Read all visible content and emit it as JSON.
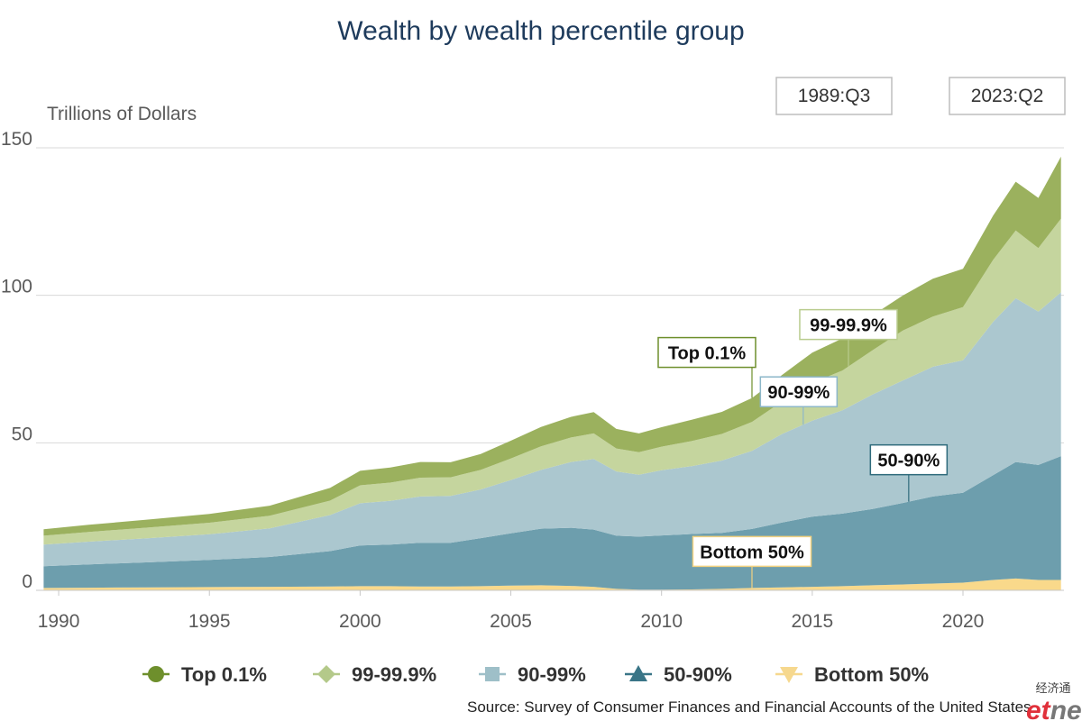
{
  "page": {
    "range_start": "1989:Q3",
    "range_end": "2023:Q2",
    "source": "Source: Survey of Consumer Finances and Financial Accounts of the United States",
    "watermark": {
      "cn": "经济通",
      "logo": "etnet"
    }
  },
  "chart_data": {
    "type": "area",
    "stacked": true,
    "title": "Wealth by wealth percentile group",
    "ylabel": "Trillions of Dollars",
    "xlabel": "",
    "ylim": [
      0,
      150
    ],
    "y_ticks": [
      "0",
      "50",
      "100",
      "150"
    ],
    "x_ticks": [
      "1990",
      "1995",
      "2000",
      "2005",
      "2010",
      "2015",
      "2020"
    ],
    "grid": true,
    "legend_position": "bottom",
    "x": [
      1989.5,
      1991,
      1993,
      1995,
      1997,
      1999,
      2000,
      2001,
      2002,
      2003,
      2004,
      2005,
      2006,
      2007,
      2007.75,
      2008.5,
      2009.25,
      2010,
      2011,
      2012,
      2013,
      2014,
      2015,
      2016,
      2017,
      2018,
      2019,
      2020,
      2021,
      2021.75,
      2022.5,
      2023.25
    ],
    "series": [
      {
        "name": "Bottom 50%",
        "color": "#f9d98b",
        "values": [
          0.8,
          0.9,
          1.0,
          1.1,
          1.2,
          1.3,
          1.4,
          1.4,
          1.3,
          1.3,
          1.4,
          1.6,
          1.7,
          1.5,
          1.2,
          0.5,
          0.2,
          0.2,
          0.3,
          0.5,
          0.8,
          1.0,
          1.2,
          1.4,
          1.7,
          2.0,
          2.3,
          2.6,
          3.5,
          4.0,
          3.5,
          3.5
        ]
      },
      {
        "name": "50-90%",
        "color": "#6d9ead",
        "values": [
          7.4,
          7.9,
          8.5,
          9.2,
          10.1,
          12.0,
          13.8,
          14.1,
          14.8,
          14.8,
          16.3,
          17.7,
          19.2,
          19.7,
          19.4,
          18.0,
          18.0,
          18.4,
          18.8,
          19.0,
          20.0,
          22.0,
          23.8,
          24.6,
          25.9,
          27.6,
          29.5,
          30.5,
          35.5,
          39.5,
          39.0,
          42.0
        ]
      },
      {
        "name": "90-99%",
        "color": "#abc7cf",
        "values": [
          7.3,
          7.7,
          8.2,
          8.7,
          9.7,
          12.2,
          14.3,
          14.8,
          15.7,
          15.9,
          16.5,
          18.1,
          19.9,
          22.3,
          23.9,
          21.8,
          21.0,
          22.1,
          23.0,
          24.5,
          26.5,
          30.0,
          32.5,
          35.0,
          38.8,
          41.5,
          44.0,
          44.9,
          52.0,
          55.5,
          52.0,
          55.5
        ]
      },
      {
        "name": "99-99.9%",
        "color": "#c5d59e",
        "values": [
          3.0,
          3.3,
          3.6,
          3.9,
          4.3,
          4.9,
          6.1,
          6.2,
          6.4,
          6.3,
          6.6,
          7.3,
          8.0,
          8.3,
          8.7,
          7.8,
          7.6,
          8.0,
          8.5,
          9.0,
          9.8,
          11.0,
          12.8,
          13.5,
          15.0,
          16.9,
          17.0,
          18.0,
          21.0,
          23.0,
          21.5,
          25.0
        ]
      },
      {
        "name": "Top 0.1%",
        "color": "#9bb15e",
        "values": [
          2.2,
          2.4,
          2.7,
          3.0,
          3.4,
          4.3,
          4.9,
          5.1,
          5.3,
          5.1,
          5.4,
          6.0,
          6.6,
          7.0,
          7.2,
          6.6,
          6.4,
          6.6,
          7.2,
          7.5,
          8.1,
          9.0,
          10.3,
          10.9,
          11.8,
          11.9,
          12.8,
          13.0,
          15.0,
          16.5,
          17.0,
          21.0
        ]
      }
    ],
    "annotations": [
      {
        "text": "Top 0.1%",
        "series": "Top 0.1%",
        "x": 2013,
        "border": "#6e8f2c"
      },
      {
        "text": "99-99.9%",
        "series": "99-99.9%",
        "x": 2016.2,
        "border": "#b9cc8e"
      },
      {
        "text": "90-99%",
        "series": "90-99%",
        "x": 2014.7,
        "border": "#8db7c9"
      },
      {
        "text": "50-90%",
        "series": "50-90%",
        "x": 2018.2,
        "border": "#2f6b7c"
      },
      {
        "text": "Bottom 50%",
        "series": "Bottom 50%",
        "x": 2013,
        "border": "#f2d280"
      }
    ],
    "legend": [
      {
        "name": "Top 0.1%",
        "marker": "circle",
        "color": "#6e8f2c"
      },
      {
        "name": "99-99.9%",
        "marker": "diamond",
        "color": "#b4c98a"
      },
      {
        "name": "90-99%",
        "marker": "square",
        "color": "#9ebfc8"
      },
      {
        "name": "50-90%",
        "marker": "triangle",
        "color": "#3a7587"
      },
      {
        "name": "Bottom 50%",
        "marker": "triangle-down",
        "color": "#f6d88e"
      }
    ]
  }
}
